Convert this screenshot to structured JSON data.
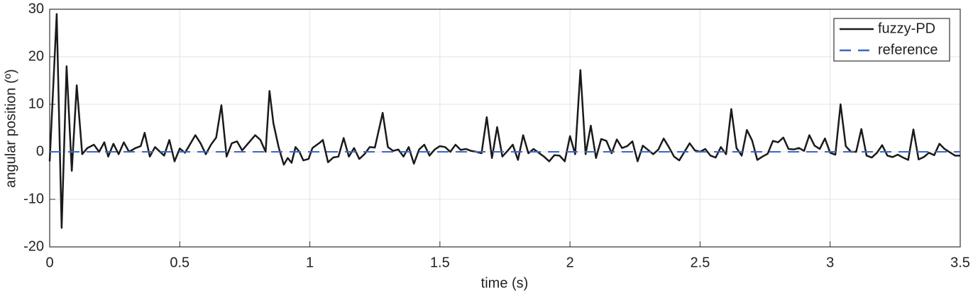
{
  "chart_data": {
    "type": "line",
    "x_label": "time (s)",
    "y_label": "angular position (º)",
    "xlim": [
      0,
      3.5
    ],
    "xticks": [
      0,
      0.5,
      1,
      1.5,
      2,
      2.5,
      3,
      3.5
    ],
    "ylim": [
      -20,
      30
    ],
    "yticks": [
      -20,
      -10,
      0,
      10,
      20,
      30
    ],
    "grid": true,
    "legend": "upper right",
    "series": [
      {
        "name": "fuzzy-PD",
        "color": "#1a1a1a",
        "dash": false,
        "x": [
          0,
          0.027,
          0.046,
          0.065,
          0.085,
          0.104,
          0.125,
          0.145,
          0.17,
          0.19,
          0.21,
          0.225,
          0.245,
          0.265,
          0.285,
          0.305,
          0.33,
          0.35,
          0.365,
          0.385,
          0.405,
          0.44,
          0.46,
          0.48,
          0.5,
          0.52,
          0.53,
          0.56,
          0.58,
          0.6,
          0.62,
          0.64,
          0.66,
          0.68,
          0.7,
          0.72,
          0.74,
          0.76,
          0.79,
          0.81,
          0.83,
          0.845,
          0.86,
          0.88,
          0.9,
          0.915,
          0.93,
          0.945,
          0.96,
          0.975,
          0.995,
          1.01,
          1.04,
          1.05,
          1.07,
          1.09,
          1.11,
          1.13,
          1.15,
          1.17,
          1.19,
          1.21,
          1.23,
          1.25,
          1.28,
          1.3,
          1.32,
          1.34,
          1.36,
          1.38,
          1.4,
          1.42,
          1.44,
          1.46,
          1.48,
          1.5,
          1.52,
          1.54,
          1.56,
          1.58,
          1.6,
          1.62,
          1.64,
          1.66,
          1.68,
          1.7,
          1.72,
          1.74,
          1.76,
          1.78,
          1.8,
          1.82,
          1.84,
          1.86,
          1.88,
          1.9,
          1.92,
          1.94,
          1.96,
          1.98,
          2.0,
          2.02,
          2.04,
          2.06,
          2.08,
          2.1,
          2.12,
          2.14,
          2.16,
          2.18,
          2.2,
          2.22,
          2.24,
          2.26,
          2.28,
          2.3,
          2.32,
          2.34,
          2.36,
          2.38,
          2.4,
          2.42,
          2.44,
          2.46,
          2.48,
          2.5,
          2.52,
          2.54,
          2.56,
          2.58,
          2.6,
          2.62,
          2.64,
          2.66,
          2.68,
          2.7,
          2.72,
          2.74,
          2.76,
          2.78,
          2.8,
          2.82,
          2.84,
          2.86,
          2.88,
          2.9,
          2.92,
          2.94,
          2.96,
          2.98,
          3.0,
          3.02,
          3.04,
          3.06,
          3.08,
          3.1,
          3.12,
          3.14,
          3.16,
          3.18,
          3.2,
          3.22,
          3.24,
          3.26,
          3.28,
          3.3,
          3.32,
          3.34,
          3.36,
          3.38,
          3.4,
          3.42,
          3.44,
          3.46,
          3.48,
          3.5
        ],
        "values": [
          -2,
          29,
          -16,
          18,
          -4,
          14,
          -0.5,
          0.8,
          1.5,
          0,
          2,
          -1,
          1.7,
          -0.5,
          2,
          0,
          0.8,
          1.2,
          4,
          -1,
          1,
          -0.8,
          2.5,
          -2,
          0.7,
          -0.2,
          0.7,
          3.5,
          1.8,
          -0.5,
          1.5,
          3,
          9.8,
          -1,
          1.8,
          2.2,
          0.3,
          1.6,
          3.5,
          2.5,
          0,
          12.8,
          6,
          1,
          -2.7,
          -1.3,
          -2.3,
          1,
          0,
          -1.8,
          -1.5,
          0.8,
          2,
          2.5,
          -2.2,
          -1.2,
          -1,
          2.9,
          -1,
          0.8,
          -1.5,
          -0.5,
          1,
          0.9,
          8.2,
          1,
          0.2,
          0.5,
          -1,
          1,
          -2.5,
          0.5,
          1.5,
          -0.8,
          0.5,
          1.2,
          1,
          0,
          1.5,
          0.4,
          0.6,
          0.2,
          0,
          -0.3,
          7.3,
          -1.3,
          5.2,
          -1,
          0.2,
          1.5,
          -1.7,
          3.5,
          -0.3,
          0.6,
          -0.2,
          -1,
          -2,
          -0.7,
          -0.8,
          -2,
          3.3,
          -0.5,
          17.2,
          -0.5,
          5.5,
          -1.3,
          2.7,
          2.3,
          -0.3,
          2.6,
          0.8,
          1.2,
          2.2,
          -2,
          1.3,
          0.4,
          -0.5,
          0.5,
          2.8,
          1,
          -1,
          -1.8,
          0,
          1.8,
          0.3,
          0,
          0.6,
          -0.8,
          -1.2,
          1,
          -0.5,
          9,
          0.8,
          -0.8,
          4.6,
          2.4,
          -1.7,
          -1,
          -0.4,
          2.3,
          2,
          3,
          0.6,
          0.5,
          0.8,
          0.2,
          3.5,
          1.3,
          0.6,
          2.8,
          -0.2,
          -0.6,
          10,
          1.2,
          0,
          0,
          4.8,
          -0.8,
          -1.2,
          -0.2,
          1.4,
          -0.8,
          -1.1,
          -0.6,
          -1.2,
          -1.7,
          4.7,
          -1.6,
          -1.1,
          -0.2,
          -0.7,
          1.7,
          0.6,
          -0.1,
          -0.8,
          -0.8
        ]
      },
      {
        "name": "reference",
        "color": "#3d66c6",
        "dash": true,
        "x": [
          0,
          3.5
        ],
        "values": [
          0,
          0
        ]
      }
    ]
  }
}
